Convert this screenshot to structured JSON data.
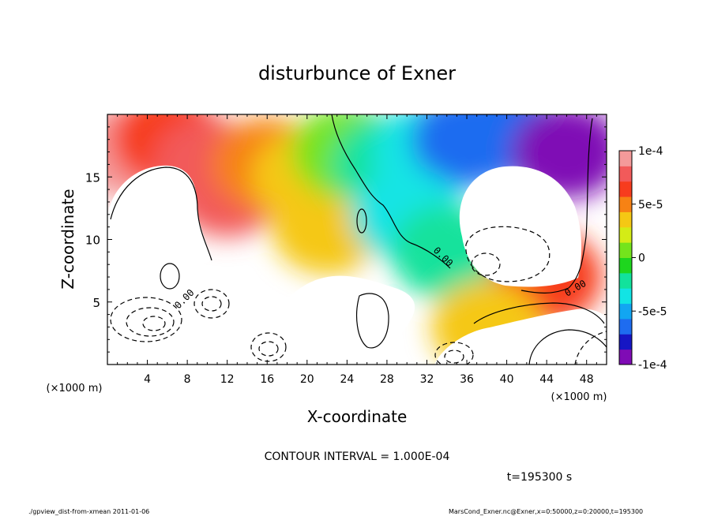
{
  "chart_data": {
    "type": "heatmap",
    "title": "disturbunce of Exner",
    "xlabel": "X-coordinate",
    "ylabel": "Z-coordinate",
    "x_unit": "(×1000 m)",
    "y_unit": "(×1000 m)",
    "xlim": [
      0,
      50
    ],
    "ylim": [
      0,
      20
    ],
    "x_ticks": [
      4,
      8,
      12,
      16,
      20,
      24,
      28,
      32,
      36,
      40,
      44,
      48
    ],
    "y_ticks": [
      5,
      10,
      15
    ],
    "colorbar": {
      "min": -0.0001,
      "max": 0.0001,
      "tick_values": [
        0.0001,
        5e-05,
        0,
        -5e-05,
        -0.0001
      ],
      "tick_labels": [
        "1e-4",
        "5e-5",
        "0",
        "-5e-5",
        "-1e-4"
      ],
      "colors": [
        "#7f0bb5",
        "#1616c4",
        "#1e6cf0",
        "#12a6f2",
        "#12e4e4",
        "#12e29c",
        "#1ed61e",
        "#74e41c",
        "#d4ec16",
        "#f5c814",
        "#f78214",
        "#f73c1e",
        "#f25a5a",
        "#f49a9a"
      ]
    },
    "contour_interval": "CONTOUR INTERVAL = 1.000E-04",
    "contour_labels": [
      "0.00",
      "0.00",
      "0.00"
    ],
    "regions": [
      {
        "x": 2,
        "z": 17,
        "value": 9e-05
      },
      {
        "x": 6,
        "z": 18,
        "value": 7e-05
      },
      {
        "x": 10,
        "z": 16,
        "value": 8e-05
      },
      {
        "x": 12,
        "z": 14,
        "value": 8e-05
      },
      {
        "x": 16,
        "z": 16,
        "value": 5e-05
      },
      {
        "x": 20,
        "z": 15,
        "value": 3e-05
      },
      {
        "x": 22,
        "z": 11,
        "value": 4e-05
      },
      {
        "x": 24,
        "z": 17,
        "value": 1e-05
      },
      {
        "x": 28,
        "z": 16,
        "value": -2e-05
      },
      {
        "x": 32,
        "z": 17,
        "value": -4e-05
      },
      {
        "x": 36,
        "z": 18,
        "value": -6e-05
      },
      {
        "x": 40,
        "z": 18.5,
        "value": -7e-05
      },
      {
        "x": 46,
        "z": 17,
        "value": -9e-05
      },
      {
        "x": 30,
        "z": 12,
        "value": -3e-05
      },
      {
        "x": 34,
        "z": 9,
        "value": -2e-05
      },
      {
        "x": 44,
        "z": 7,
        "value": 6e-05
      },
      {
        "x": 38,
        "z": 3,
        "value": 4e-05
      }
    ],
    "white_regions_note": "values beyond colorbar range shown white"
  },
  "time_label": "t=195300 s",
  "footer_left": "./gpview_dist-from-xmean  2011-01-06",
  "footer_right": "MarsCond_Exner.nc@Exner,x=0:50000,z=0:20000,t=195300"
}
